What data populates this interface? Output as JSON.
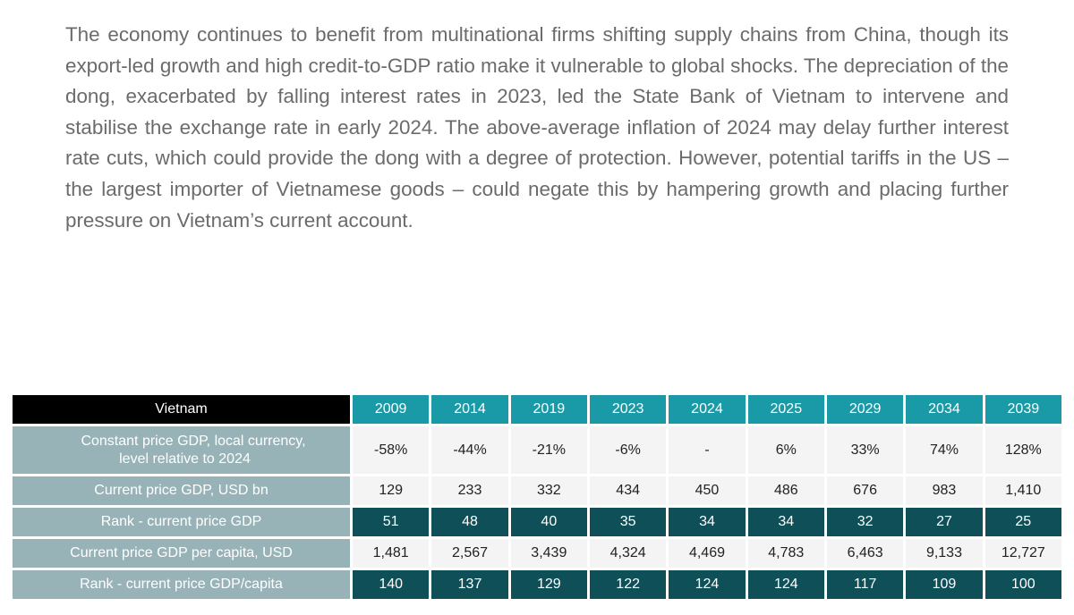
{
  "paragraph": "The economy continues to benefit from multinational firms shifting supply chains from China, though its export-led growth and high credit-to-GDP ratio make it vulnerable to global shocks. The depreciation of the dong, exacerbated by falling interest rates in 2023, led the State Bank of Vietnam to intervene and stabilise the exchange rate in early 2024. The above-average inflation of 2024 may delay further interest rate cuts, which could provide the dong with a degree of protection. However, potential tariffs in the US – the largest importer of Vietnamese goods – could negate this by hampering growth and placing further pressure on Vietnam’s current account.",
  "table": {
    "country": "Vietnam",
    "years": [
      "2009",
      "2014",
      "2019",
      "2023",
      "2024",
      "2025",
      "2029",
      "2034",
      "2039"
    ],
    "rows": [
      {
        "label_line1": "Constant price GDP, local currency,",
        "label_line2": "level relative to 2024",
        "values": [
          "-58%",
          "-44%",
          "-21%",
          "-6%",
          "-",
          "6%",
          "33%",
          "74%",
          "128%"
        ]
      },
      {
        "label": "Current price GDP, USD bn",
        "values": [
          "129",
          "233",
          "332",
          "434",
          "450",
          "486",
          "676",
          "983",
          "1,410"
        ]
      },
      {
        "label": "Rank - current price GDP",
        "values": [
          "51",
          "48",
          "40",
          "35",
          "34",
          "34",
          "32",
          "27",
          "25"
        ]
      },
      {
        "label": "Current price GDP per capita, USD",
        "values": [
          "1,481",
          "2,567",
          "3,439",
          "4,324",
          "4,469",
          "4,783",
          "6,463",
          "9,133",
          "12,727"
        ]
      },
      {
        "label": "Rank - current price GDP/capita",
        "values": [
          "140",
          "137",
          "129",
          "122",
          "124",
          "124",
          "117",
          "109",
          "100"
        ]
      }
    ]
  },
  "colors": {
    "header_black": "#000000",
    "header_teal": "#1a9aa6",
    "label_grey": "#98b3b7",
    "cell_light": "#f4f4f4",
    "cell_dark": "#0e4f58"
  }
}
